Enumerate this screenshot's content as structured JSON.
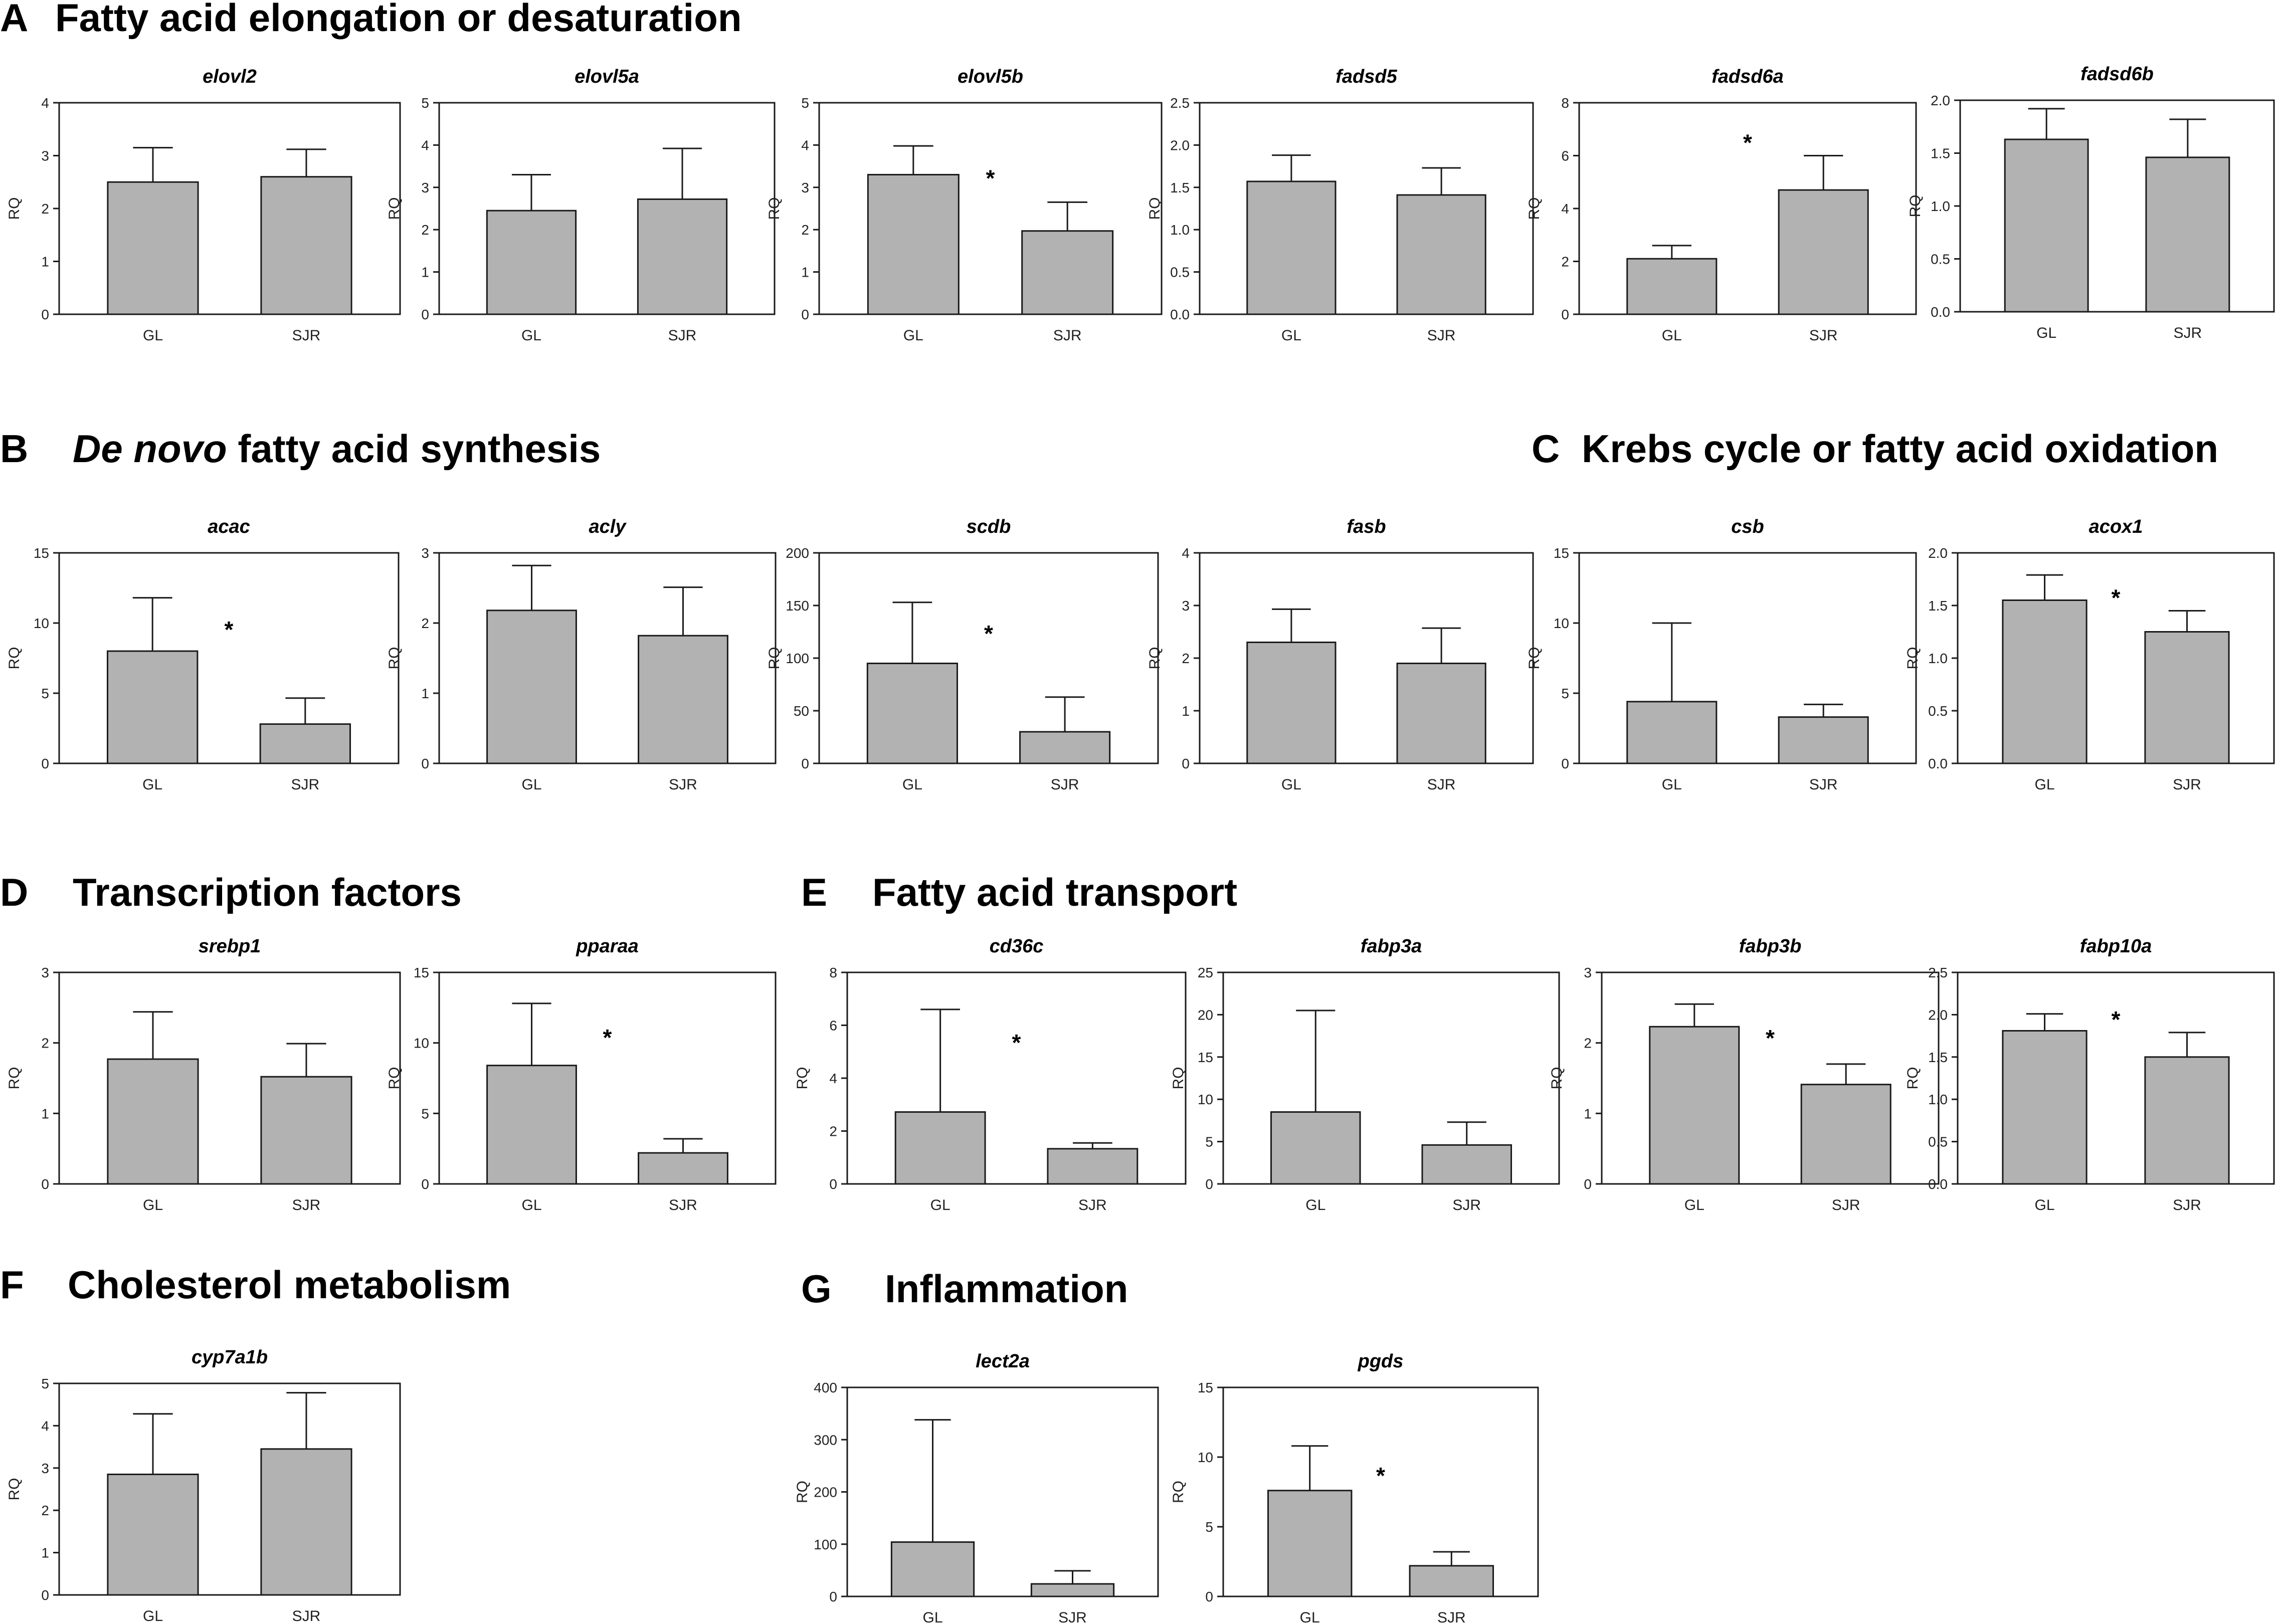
{
  "colors": {
    "bar": "#b2b2b2",
    "stroke": "#1a1a1a"
  },
  "sections": [
    {
      "letter": "A",
      "title": "Fatty acid elongation or desaturation"
    },
    {
      "letter": "B",
      "title_italic": "De novo",
      "title": " fatty acid synthesis"
    },
    {
      "letter": "C",
      "title": "Krebs cycle or fatty acid oxidation"
    },
    {
      "letter": "D",
      "title": "Transcription factors"
    },
    {
      "letter": "E",
      "title": "Fatty acid transport"
    },
    {
      "letter": "F",
      "title": "Cholesterol metabolism"
    },
    {
      "letter": "G",
      "title": "Inflammation"
    }
  ],
  "chart_data": [
    {
      "type": "bar",
      "section": "A",
      "title": "elovl2",
      "ylabel": "RQ",
      "categories": [
        "GL",
        "SJR"
      ],
      "values": [
        2.5,
        2.6
      ],
      "errors": [
        0.65,
        0.52
      ],
      "ylim": [
        0,
        4
      ],
      "yticks": [
        "0",
        "1",
        "2",
        "3",
        "4"
      ],
      "significance": ""
    },
    {
      "type": "bar",
      "section": "A",
      "title": "elovl5a",
      "ylabel": "RQ",
      "categories": [
        "GL",
        "SJR"
      ],
      "values": [
        2.45,
        2.72
      ],
      "errors": [
        0.85,
        1.2
      ],
      "ylim": [
        0,
        5
      ],
      "yticks": [
        "0",
        "1",
        "2",
        "3",
        "4",
        "5"
      ],
      "significance": ""
    },
    {
      "type": "bar",
      "section": "A",
      "title": "elovl5b",
      "ylabel": "RQ",
      "categories": [
        "GL",
        "SJR"
      ],
      "values": [
        3.3,
        1.97
      ],
      "errors": [
        0.68,
        0.68
      ],
      "ylim": [
        0,
        5
      ],
      "yticks": [
        "0",
        "1",
        "2",
        "3",
        "4",
        "5"
      ],
      "significance": "*"
    },
    {
      "type": "bar",
      "section": "A",
      "title": "fadsd5",
      "ylabel": "RQ",
      "categories": [
        "GL",
        "SJR"
      ],
      "values": [
        1.57,
        1.41
      ],
      "errors": [
        0.31,
        0.32
      ],
      "ylim": [
        0,
        2.5
      ],
      "yticks": [
        "0.0",
        "0.5",
        "1.0",
        "1.5",
        "2.0",
        "2.5"
      ],
      "significance": ""
    },
    {
      "type": "bar",
      "section": "A",
      "title": "fadsd6a",
      "ylabel": "RQ",
      "categories": [
        "GL",
        "SJR"
      ],
      "values": [
        2.1,
        4.7
      ],
      "errors": [
        0.5,
        1.3
      ],
      "ylim": [
        0,
        8
      ],
      "yticks": [
        "0",
        "2",
        "4",
        "6",
        "8"
      ],
      "significance": "*"
    },
    {
      "type": "bar",
      "section": "A",
      "title": "fadsd6b",
      "ylabel": "RQ",
      "categories": [
        "GL",
        "SJR"
      ],
      "values": [
        1.63,
        1.46
      ],
      "errors": [
        0.29,
        0.36
      ],
      "ylim": [
        0,
        2.0
      ],
      "yticks": [
        "0.0",
        "0.5",
        "1.0",
        "1.5",
        "2.0"
      ],
      "significance": ""
    },
    {
      "type": "bar",
      "section": "B",
      "title": "acac",
      "ylabel": "RQ",
      "categories": [
        "GL",
        "SJR"
      ],
      "values": [
        8.0,
        2.8
      ],
      "errors": [
        3.8,
        1.85
      ],
      "ylim": [
        0,
        15
      ],
      "yticks": [
        "0",
        "5",
        "10",
        "15"
      ],
      "significance": "*"
    },
    {
      "type": "bar",
      "section": "B",
      "title": "acly",
      "ylabel": "RQ",
      "categories": [
        "GL",
        "SJR"
      ],
      "values": [
        2.18,
        1.82
      ],
      "errors": [
        0.64,
        0.69
      ],
      "ylim": [
        0,
        3
      ],
      "yticks": [
        "0",
        "1",
        "2",
        "3"
      ],
      "significance": ""
    },
    {
      "type": "bar",
      "section": "B",
      "title": "scdb",
      "ylabel": "RQ",
      "categories": [
        "GL",
        "SJR"
      ],
      "values": [
        95,
        30
      ],
      "errors": [
        58,
        33
      ],
      "ylim": [
        0,
        200
      ],
      "yticks": [
        "0",
        "50",
        "100",
        "150",
        "200"
      ],
      "significance": "*"
    },
    {
      "type": "bar",
      "section": "B",
      "title": "fasb",
      "ylabel": "RQ",
      "categories": [
        "GL",
        "SJR"
      ],
      "values": [
        2.3,
        1.9
      ],
      "errors": [
        0.63,
        0.67
      ],
      "ylim": [
        0,
        4
      ],
      "yticks": [
        "0",
        "1",
        "2",
        "3",
        "4"
      ],
      "significance": ""
    },
    {
      "type": "bar",
      "section": "C",
      "title": "csb",
      "ylabel": "RQ",
      "categories": [
        "GL",
        "SJR"
      ],
      "values": [
        4.4,
        3.3
      ],
      "errors": [
        5.6,
        0.9
      ],
      "ylim": [
        0,
        15
      ],
      "yticks": [
        "0",
        "5",
        "10",
        "15"
      ],
      "significance": ""
    },
    {
      "type": "bar",
      "section": "C",
      "title": "acox1",
      "ylabel": "RQ",
      "categories": [
        "GL",
        "SJR"
      ],
      "values": [
        1.55,
        1.25
      ],
      "errors": [
        0.24,
        0.2
      ],
      "ylim": [
        0,
        2.0
      ],
      "yticks": [
        "0.0",
        "0.5",
        "1.0",
        "1.5",
        "2.0"
      ],
      "significance": "*"
    },
    {
      "type": "bar",
      "section": "D",
      "title": "srebp1",
      "ylabel": "RQ",
      "categories": [
        "GL",
        "SJR"
      ],
      "values": [
        1.77,
        1.52
      ],
      "errors": [
        0.67,
        0.47
      ],
      "ylim": [
        0,
        3
      ],
      "yticks": [
        "0",
        "1",
        "2",
        "3"
      ],
      "significance": ""
    },
    {
      "type": "bar",
      "section": "D",
      "title": "pparaa",
      "ylabel": "RQ",
      "categories": [
        "GL",
        "SJR"
      ],
      "values": [
        8.4,
        2.2
      ],
      "errors": [
        4.4,
        1.0
      ],
      "ylim": [
        0,
        15
      ],
      "yticks": [
        "0",
        "5",
        "10",
        "15"
      ],
      "significance": "*"
    },
    {
      "type": "bar",
      "section": "E",
      "title": "cd36c",
      "ylabel": "RQ",
      "categories": [
        "GL",
        "SJR"
      ],
      "values": [
        2.72,
        1.33
      ],
      "errors": [
        3.88,
        0.22
      ],
      "ylim": [
        0,
        8
      ],
      "yticks": [
        "0",
        "2",
        "4",
        "6",
        "8"
      ],
      "significance": "*"
    },
    {
      "type": "bar",
      "section": "E",
      "title": "fabp3a",
      "ylabel": "RQ",
      "categories": [
        "GL",
        "SJR"
      ],
      "values": [
        8.5,
        4.6
      ],
      "errors": [
        12.0,
        2.7
      ],
      "ylim": [
        0,
        25
      ],
      "yticks": [
        "0",
        "5",
        "10",
        "15",
        "20",
        "25"
      ],
      "significance": ""
    },
    {
      "type": "bar",
      "section": "E",
      "title": "fabp3b",
      "ylabel": "RQ",
      "categories": [
        "GL",
        "SJR"
      ],
      "values": [
        2.23,
        1.41
      ],
      "errors": [
        0.32,
        0.29
      ],
      "ylim": [
        0,
        3
      ],
      "yticks": [
        "0",
        "1",
        "2",
        "3"
      ],
      "significance": "*"
    },
    {
      "type": "bar",
      "section": "E",
      "title": "fabp10a",
      "ylabel": "RQ",
      "categories": [
        "GL",
        "SJR"
      ],
      "values": [
        1.81,
        1.5
      ],
      "errors": [
        0.2,
        0.29
      ],
      "ylim": [
        0,
        2.5
      ],
      "yticks": [
        "0.0",
        "0.5",
        "1.0",
        "1.5",
        "2.0",
        "2.5"
      ],
      "significance": "*"
    },
    {
      "type": "bar",
      "section": "F",
      "title": "cyp7a1b",
      "ylabel": "RQ",
      "categories": [
        "GL",
        "SJR"
      ],
      "values": [
        2.85,
        3.45
      ],
      "errors": [
        1.43,
        1.33
      ],
      "ylim": [
        0,
        5
      ],
      "yticks": [
        "0",
        "1",
        "2",
        "3",
        "4",
        "5"
      ],
      "significance": ""
    },
    {
      "type": "bar",
      "section": "G",
      "title": "lect2a",
      "ylabel": "RQ",
      "categories": [
        "GL",
        "SJR"
      ],
      "values": [
        104,
        24
      ],
      "errors": [
        234,
        25
      ],
      "ylim": [
        0,
        400
      ],
      "yticks": [
        "0",
        "100",
        "200",
        "300",
        "400"
      ],
      "significance": ""
    },
    {
      "type": "bar",
      "section": "G",
      "title": "pgds",
      "ylabel": "RQ",
      "categories": [
        "GL",
        "SJR"
      ],
      "values": [
        7.6,
        2.2
      ],
      "errors": [
        3.2,
        1.0
      ],
      "ylim": [
        0,
        15
      ],
      "yticks": [
        "0",
        "5",
        "10",
        "15"
      ],
      "significance": "*"
    }
  ]
}
